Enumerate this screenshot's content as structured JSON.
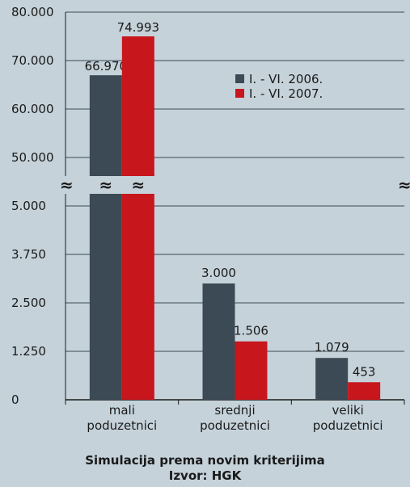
{
  "chart_data": {
    "type": "bar",
    "broken_axis": true,
    "categories": [
      [
        "mali",
        "poduzetnici"
      ],
      [
        "srednji",
        "poduzetnici"
      ],
      [
        "veliki",
        "poduzetnici"
      ]
    ],
    "series": [
      {
        "name": "I. - VI. 2006.",
        "color": "#3b4a55",
        "values": [
          66970,
          3000,
          1079
        ],
        "labels": [
          "66.970",
          "3.000",
          "1.079"
        ]
      },
      {
        "name": "I. - VI. 2007.",
        "color": "#c8161d",
        "values": [
          74993,
          1506,
          453
        ],
        "labels": [
          "74.993",
          "1.506",
          "453"
        ]
      }
    ],
    "lower_ticks": [
      {
        "value": 0,
        "label": "0"
      },
      {
        "value": 1250,
        "label": "1.250"
      },
      {
        "value": 2500,
        "label": "2.500"
      },
      {
        "value": 3750,
        "label": "3.750"
      },
      {
        "value": 5000,
        "label": "5.000"
      }
    ],
    "upper_ticks": [
      {
        "value": 50000,
        "label": "50.000"
      },
      {
        "value": 60000,
        "label": "60.000"
      },
      {
        "value": 70000,
        "label": "70.000"
      },
      {
        "value": 80000,
        "label": "80.000"
      }
    ],
    "lower_range": [
      0,
      5000
    ],
    "upper_range": [
      50000,
      80000
    ],
    "break_symbol": "≈",
    "grid": true,
    "legend_position": "top-right",
    "caption": "Simulacija prema novim kriterijima",
    "source": "Izvor: HGK"
  }
}
